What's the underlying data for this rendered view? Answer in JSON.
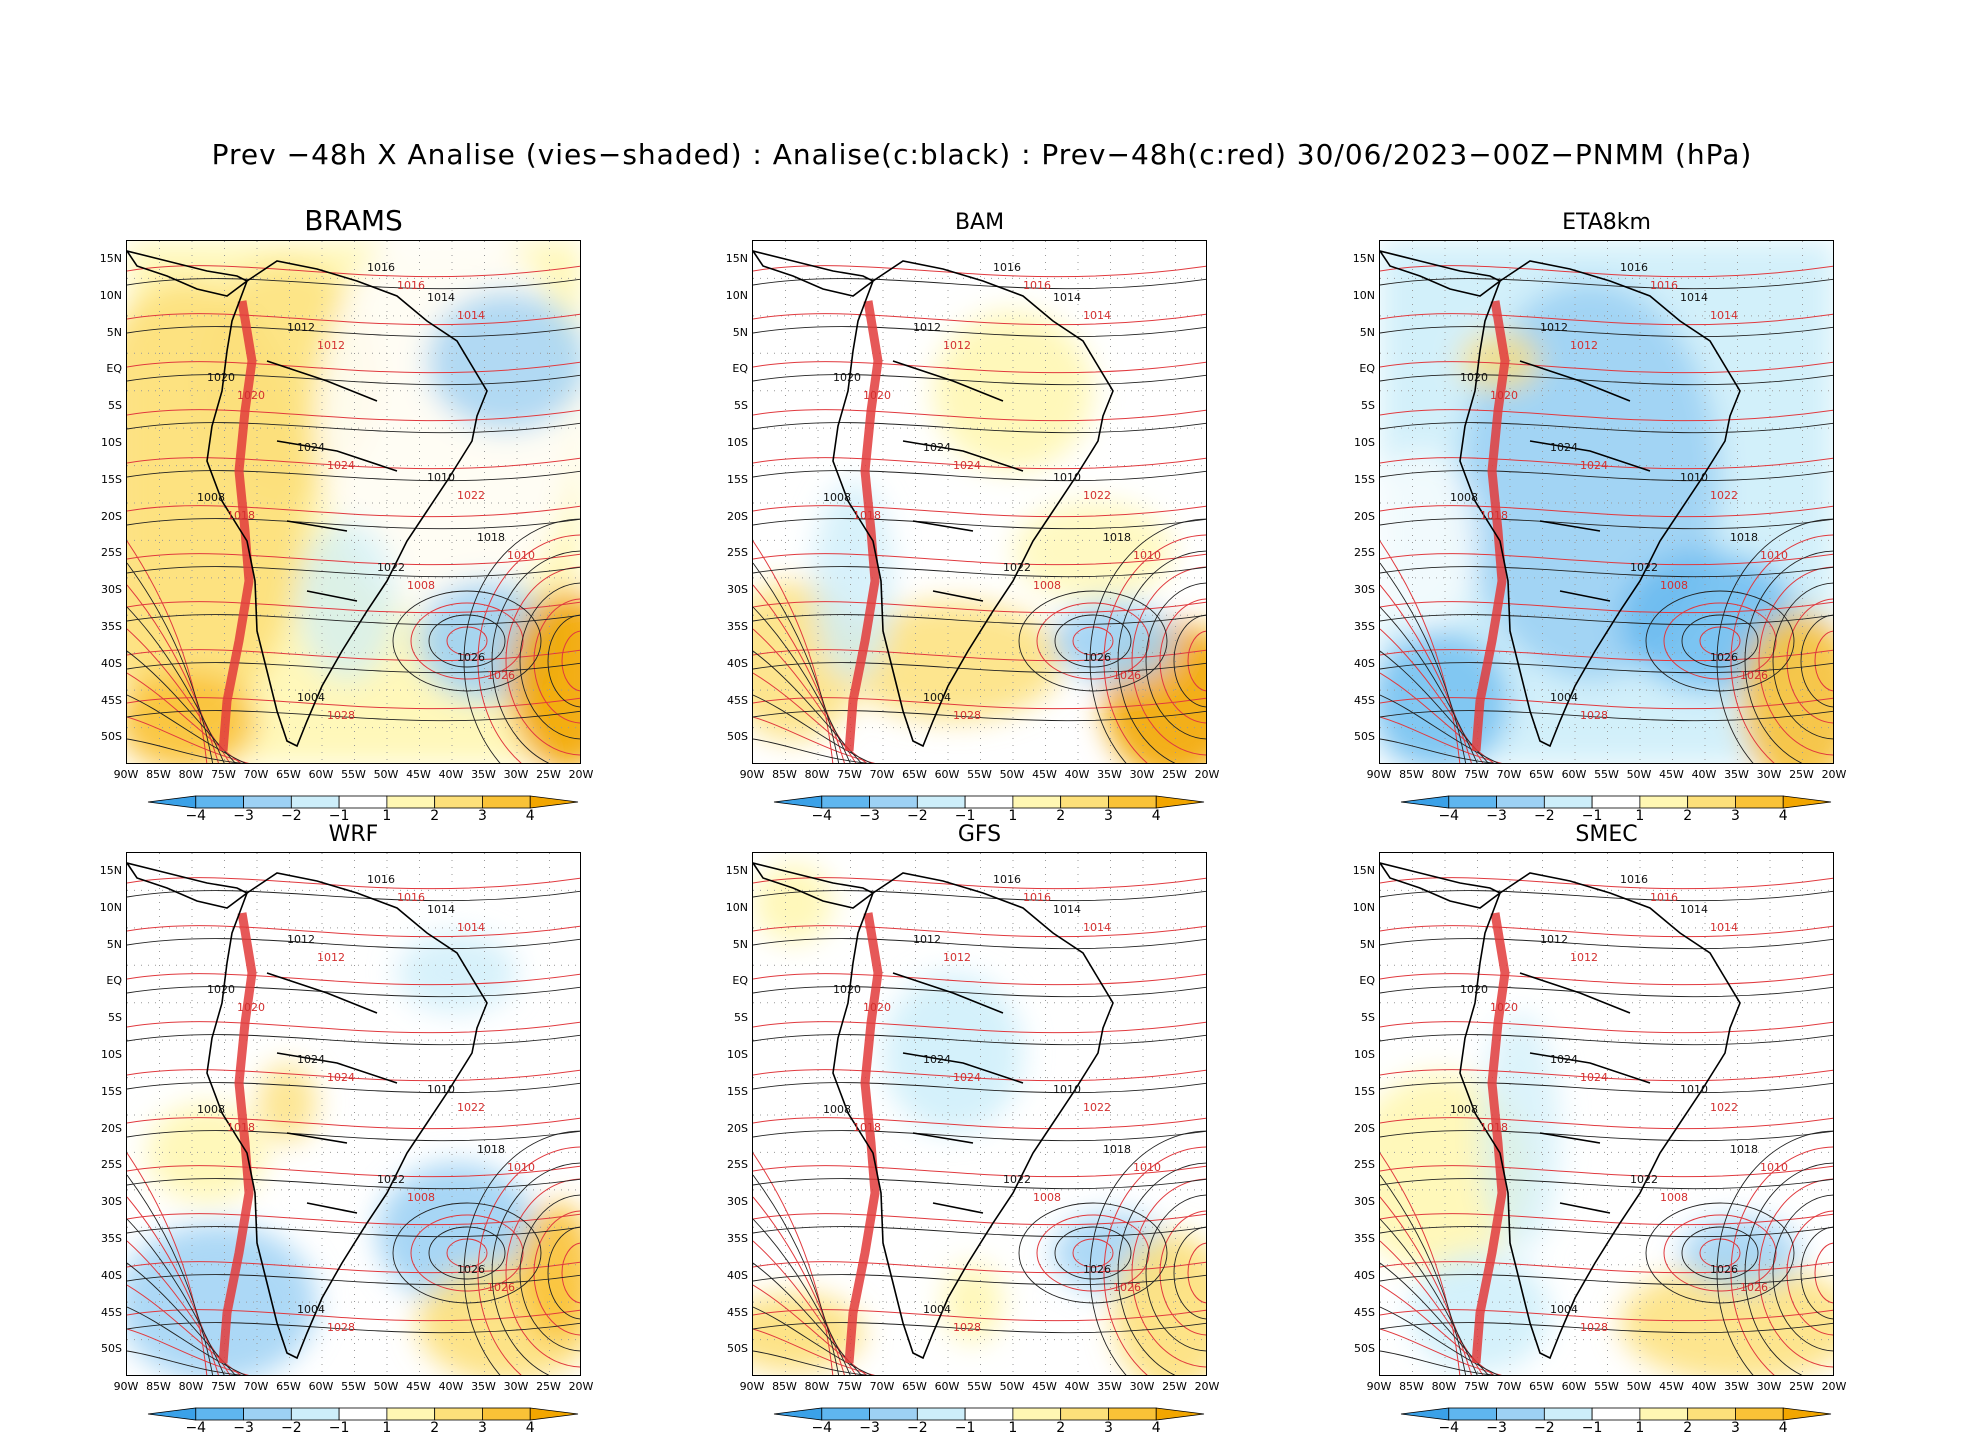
{
  "title": "Prev −48h X Analise (vies−shaded) : Analise(c:black) : Prev−48h(c:red) 30/06/2023−00Z−PNMM (hPa)",
  "panels": [
    {
      "name": "BRAMS",
      "variant": "warm-strong"
    },
    {
      "name": "BAM",
      "variant": "warm-mid"
    },
    {
      "name": "ETA8km",
      "variant": "cold-strong"
    },
    {
      "name": "WRF",
      "variant": "mixed"
    },
    {
      "name": "GFS",
      "variant": "light"
    },
    {
      "name": "SMEC",
      "variant": "light-warm"
    }
  ],
  "lat_labels": [
    "15N",
    "10N",
    "5N",
    "EQ",
    "5S",
    "10S",
    "15S",
    "20S",
    "25S",
    "30S",
    "35S",
    "40S",
    "45S",
    "50S"
  ],
  "lon_labels": [
    "90W",
    "85W",
    "80W",
    "75W",
    "70W",
    "65W",
    "60W",
    "55W",
    "50W",
    "45W",
    "40W",
    "35W",
    "30W",
    "25W",
    "20W"
  ],
  "colorbar": {
    "labels": [
      "−4",
      "−3",
      "−2",
      "−1",
      "1",
      "2",
      "3",
      "4"
    ],
    "colors": [
      "#3aa1e8",
      "#5fb6ef",
      "#9dd1f4",
      "#cdeefa",
      "#ffffff",
      "#fff7b3",
      "#fde07a",
      "#f9c237",
      "#f2a600"
    ]
  },
  "contour_labels": {
    "black": [
      "1016",
      "1014",
      "1012",
      "1020",
      "1024",
      "1008",
      "1010",
      "1018",
      "1022",
      "1026",
      "1004"
    ],
    "red": [
      "1016",
      "1014",
      "1012",
      "1020",
      "1024",
      "1018",
      "1022",
      "1010",
      "1008",
      "1026",
      "1028"
    ]
  }
}
